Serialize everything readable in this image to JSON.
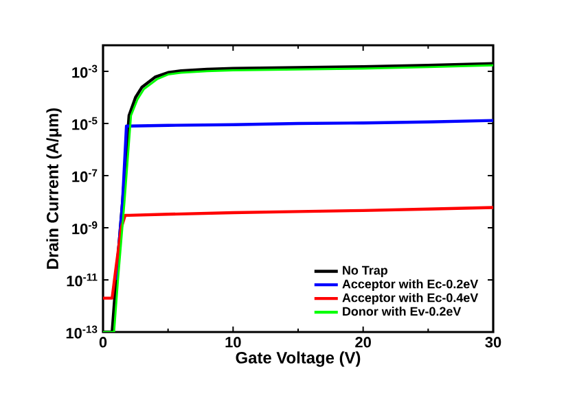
{
  "chart_data": {
    "type": "line",
    "xlabel": "Gate Voltage (V)",
    "ylabel": "Drain Current (A/μm)",
    "log": "y",
    "xlim": [
      0,
      30
    ],
    "xticks": [
      0,
      10,
      20,
      30
    ],
    "ylim": [
      1e-13,
      0.01
    ],
    "yticks": [
      {
        "value": 1e-13,
        "label": "10$^{-13}$"
      },
      {
        "value": 1e-11,
        "label": "10$^{-11}$"
      },
      {
        "value": 1e-09,
        "label": "10$^{-9}$"
      },
      {
        "value": 1e-07,
        "label": "10$^{-7}$"
      },
      {
        "value": 1e-05,
        "label": "10$^{-5}$"
      },
      {
        "value": 0.001,
        "label": "10$^{-3}$"
      }
    ],
    "legend": "bottom right",
    "line_style": "solid",
    "marker": "none",
    "series": [
      {
        "name": "No Trap",
        "color": "#000000",
        "x": [
          0,
          0.7,
          1,
          1.5,
          2,
          2.5,
          3,
          4,
          5,
          6,
          8,
          10,
          15,
          20,
          25,
          30
        ],
        "values": [
          1e-13,
          1e-13,
          1e-11,
          1e-08,
          2e-05,
          0.0001,
          0.00025,
          0.0006,
          0.0009,
          0.00105,
          0.0012,
          0.0013,
          0.0014,
          0.0015,
          0.0017,
          0.002
        ]
      },
      {
        "name": "Acceptor with Ec-0.2eV",
        "color": "#0000ff",
        "x": [
          1,
          1.5,
          1.8,
          2,
          5,
          10,
          15,
          20,
          25,
          30
        ],
        "values": [
          1e-11,
          1e-08,
          8e-06,
          8e-06,
          8.5e-06,
          9e-06,
          1e-05,
          1.05e-05,
          1.15e-05,
          1.3e-05
        ]
      },
      {
        "name": "Acceptor with Ec-0.4eV",
        "color": "#ff0000",
        "x": [
          0,
          0.7,
          1,
          1.4,
          1.7,
          2,
          5,
          10,
          15,
          20,
          25,
          30
        ],
        "values": [
          2e-12,
          2e-12,
          3e-11,
          1e-09,
          3e-09,
          3e-09,
          3.3e-09,
          3.8e-09,
          4.2e-09,
          4.6e-09,
          5.2e-09,
          6e-09
        ]
      },
      {
        "name": "Donor with Ev-0.2eV",
        "color": "#00ff00",
        "x": [
          0,
          0.85,
          1.15,
          1.65,
          2.15,
          2.65,
          3.15,
          4.15,
          5,
          6,
          8,
          10,
          15,
          20,
          25,
          30
        ],
        "values": [
          1e-13,
          1e-13,
          1e-11,
          1e-08,
          2e-05,
          8.5e-05,
          0.00021,
          0.0005,
          0.00076,
          0.00089,
          0.00102,
          0.0011,
          0.00119,
          0.00127,
          0.00145,
          0.0017
        ]
      }
    ]
  }
}
